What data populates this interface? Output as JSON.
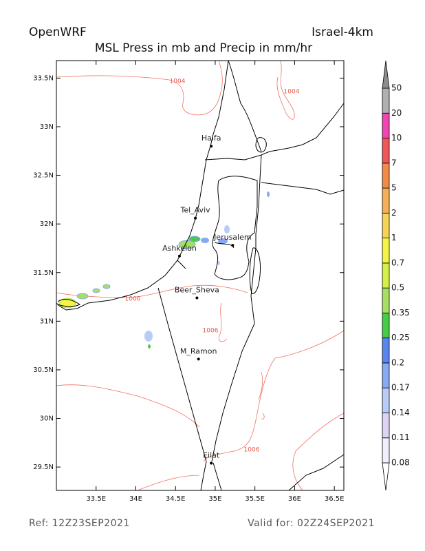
{
  "header": {
    "left": "OpenWRF",
    "right": "Israel-4km",
    "subtitle": "MSL Press in mb and Precip in mm/hr"
  },
  "map": {
    "xlim": [
      33.0,
      36.62
    ],
    "ylim": [
      29.26,
      33.68
    ],
    "xticks": [
      {
        "value": 33.5,
        "label": "33.5E"
      },
      {
        "value": 34,
        "label": "34E"
      },
      {
        "value": 34.5,
        "label": "34.5E"
      },
      {
        "value": 35,
        "label": "35E"
      },
      {
        "value": 35.5,
        "label": "35.5E"
      },
      {
        "value": 36,
        "label": "36E"
      },
      {
        "value": 36.5,
        "label": "36.5E"
      }
    ],
    "yticks": [
      {
        "value": 29.5,
        "label": "29.5N"
      },
      {
        "value": 30,
        "label": "30N"
      },
      {
        "value": 30.5,
        "label": "30.5N"
      },
      {
        "value": 31,
        "label": "31N"
      },
      {
        "value": 31.5,
        "label": "31.5N"
      },
      {
        "value": 32,
        "label": "32N"
      },
      {
        "value": 32.5,
        "label": "32.5N"
      },
      {
        "value": 33,
        "label": "33N"
      },
      {
        "value": 33.5,
        "label": "33.5N"
      }
    ],
    "cities": [
      {
        "name": "Haifa",
        "lon": 34.95,
        "lat": 32.8
      },
      {
        "name": "Tel_Aviv",
        "lon": 34.75,
        "lat": 32.06
      },
      {
        "name": "Jerusalem",
        "lon": 35.22,
        "lat": 31.78
      },
      {
        "name": "Ashkelon",
        "lon": 34.55,
        "lat": 31.67
      },
      {
        "name": "Beer_Sheva",
        "lon": 34.77,
        "lat": 31.24
      },
      {
        "name": "M_Ramon",
        "lon": 34.79,
        "lat": 30.61
      },
      {
        "name": "Eilat",
        "lon": 34.95,
        "lat": 29.54
      }
    ],
    "contours": [
      {
        "label": "1004"
      },
      {
        "label": "1004"
      },
      {
        "label": "1006"
      },
      {
        "label": "1006"
      },
      {
        "label": "1006"
      }
    ]
  },
  "colorbar": {
    "levels": [
      0.08,
      0.11,
      0.14,
      0.17,
      0.2,
      0.25,
      0.35,
      0.5,
      0.7,
      1,
      2,
      5,
      7,
      10,
      20,
      50
    ],
    "colors": [
      "#ffffff",
      "#f2eefa",
      "#dcd4f2",
      "#b8ccf6",
      "#88aaf2",
      "#5a84ee",
      "#46cc46",
      "#a6e060",
      "#d2f048",
      "#f4f448",
      "#f4d458",
      "#f4b058",
      "#f48a48",
      "#f05858",
      "#f046b4",
      "#b0b0b0",
      "#8c8c8c"
    ]
  },
  "footer": {
    "ref": "Ref: 12Z23SEP2021",
    "valid": "Valid for: 02Z24SEP2021"
  }
}
